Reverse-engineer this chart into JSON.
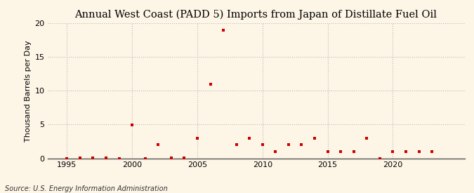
{
  "title": "Annual West Coast (PADD 5) Imports from Japan of Distillate Fuel Oil",
  "ylabel": "Thousand Barrels per Day",
  "source": "Source: U.S. Energy Information Administration",
  "background_color": "#fdf5e6",
  "marker_color": "#cc0000",
  "years": [
    1995,
    1996,
    1997,
    1998,
    1999,
    2000,
    2001,
    2002,
    2003,
    2004,
    2005,
    2006,
    2007,
    2008,
    2009,
    2010,
    2011,
    2012,
    2013,
    2014,
    2015,
    2016,
    2017,
    2018,
    2019,
    2020,
    2021,
    2022,
    2023
  ],
  "values": [
    0,
    0.1,
    0.1,
    0.1,
    0,
    4.9,
    0,
    2.0,
    0.1,
    0.1,
    3.0,
    11.0,
    19.0,
    2.0,
    3.0,
    2.0,
    1.0,
    2.0,
    2.0,
    3.0,
    1.0,
    1.0,
    1.0,
    3.0,
    0.0,
    1.0,
    1.0,
    1.0,
    1.0
  ],
  "xlim": [
    1993.5,
    2025.5
  ],
  "ylim": [
    0,
    20
  ],
  "yticks": [
    0,
    5,
    10,
    15,
    20
  ],
  "xticks": [
    1995,
    2000,
    2005,
    2010,
    2015,
    2020
  ],
  "grid_color": "#bbbbbb",
  "title_fontsize": 10.5,
  "label_fontsize": 8,
  "tick_fontsize": 8,
  "source_fontsize": 7
}
